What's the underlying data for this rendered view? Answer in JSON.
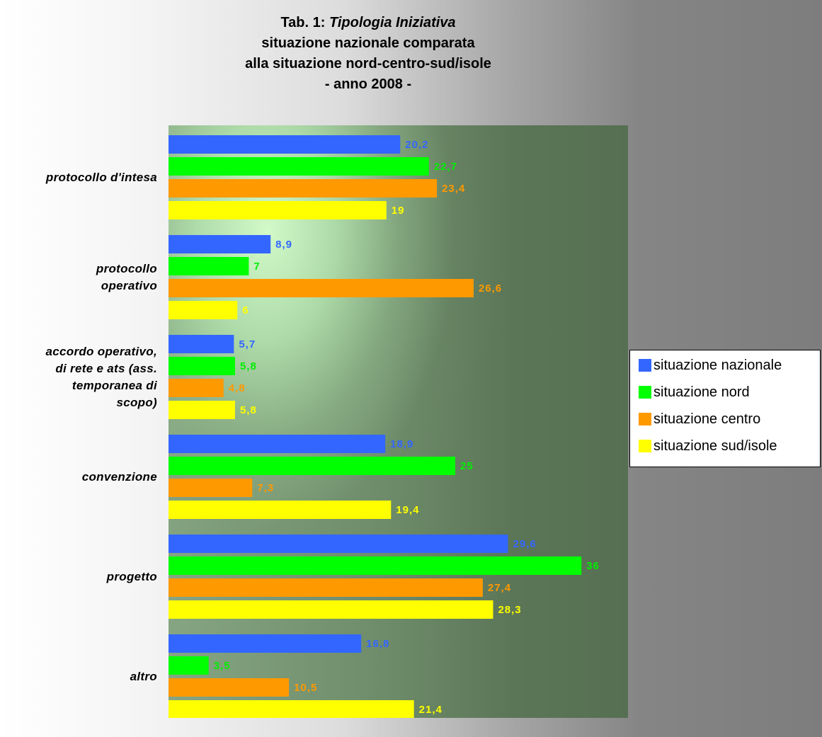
{
  "title": {
    "line1_prefix": "Tab. 1: ",
    "line1_italic": "Tipologia Iniziativa",
    "line2": "situazione nazionale comparata",
    "line3": "alla situazione nord-centro-sud/isole",
    "line4": "- anno 2008 -"
  },
  "chart_data": {
    "type": "bar",
    "orientation": "horizontal",
    "categories": [
      "protocollo d'intesa",
      "protocollo\noperativo",
      "accordo operativo,\ndi rete e ats (ass.\ntemporanea di\nscopo)",
      "convenzione",
      "progetto",
      "altro"
    ],
    "series": [
      {
        "name": "situazione nazionale",
        "color": "#3366ff",
        "values": [
          20.2,
          8.9,
          5.7,
          18.9,
          29.6,
          16.8
        ],
        "labels": [
          "20,2",
          "8,9",
          "5,7",
          "18,9",
          "29,6",
          "16,8"
        ]
      },
      {
        "name": "situazione nord",
        "color": "#00ff00",
        "values": [
          22.7,
          7,
          5.8,
          25,
          36,
          3.5
        ],
        "labels": [
          "22,7",
          "7",
          "5,8",
          "25",
          "36",
          "3,5"
        ]
      },
      {
        "name": "situazione centro",
        "color": "#ff9900",
        "values": [
          23.4,
          26.6,
          4.8,
          7.3,
          27.4,
          10.5
        ],
        "labels": [
          "23,4",
          "26,6",
          "4,8",
          "7,3",
          "27,4",
          "10,5"
        ]
      },
      {
        "name": "situazione sud/isole",
        "color": "#ffff00",
        "values": [
          19,
          6,
          5.8,
          19.4,
          28.3,
          21.4
        ],
        "labels": [
          "19",
          "6",
          "5,8",
          "19,4",
          "28,3",
          "21,4"
        ]
      }
    ],
    "xlim": [
      0,
      40
    ],
    "grid": false,
    "legend": "right"
  }
}
